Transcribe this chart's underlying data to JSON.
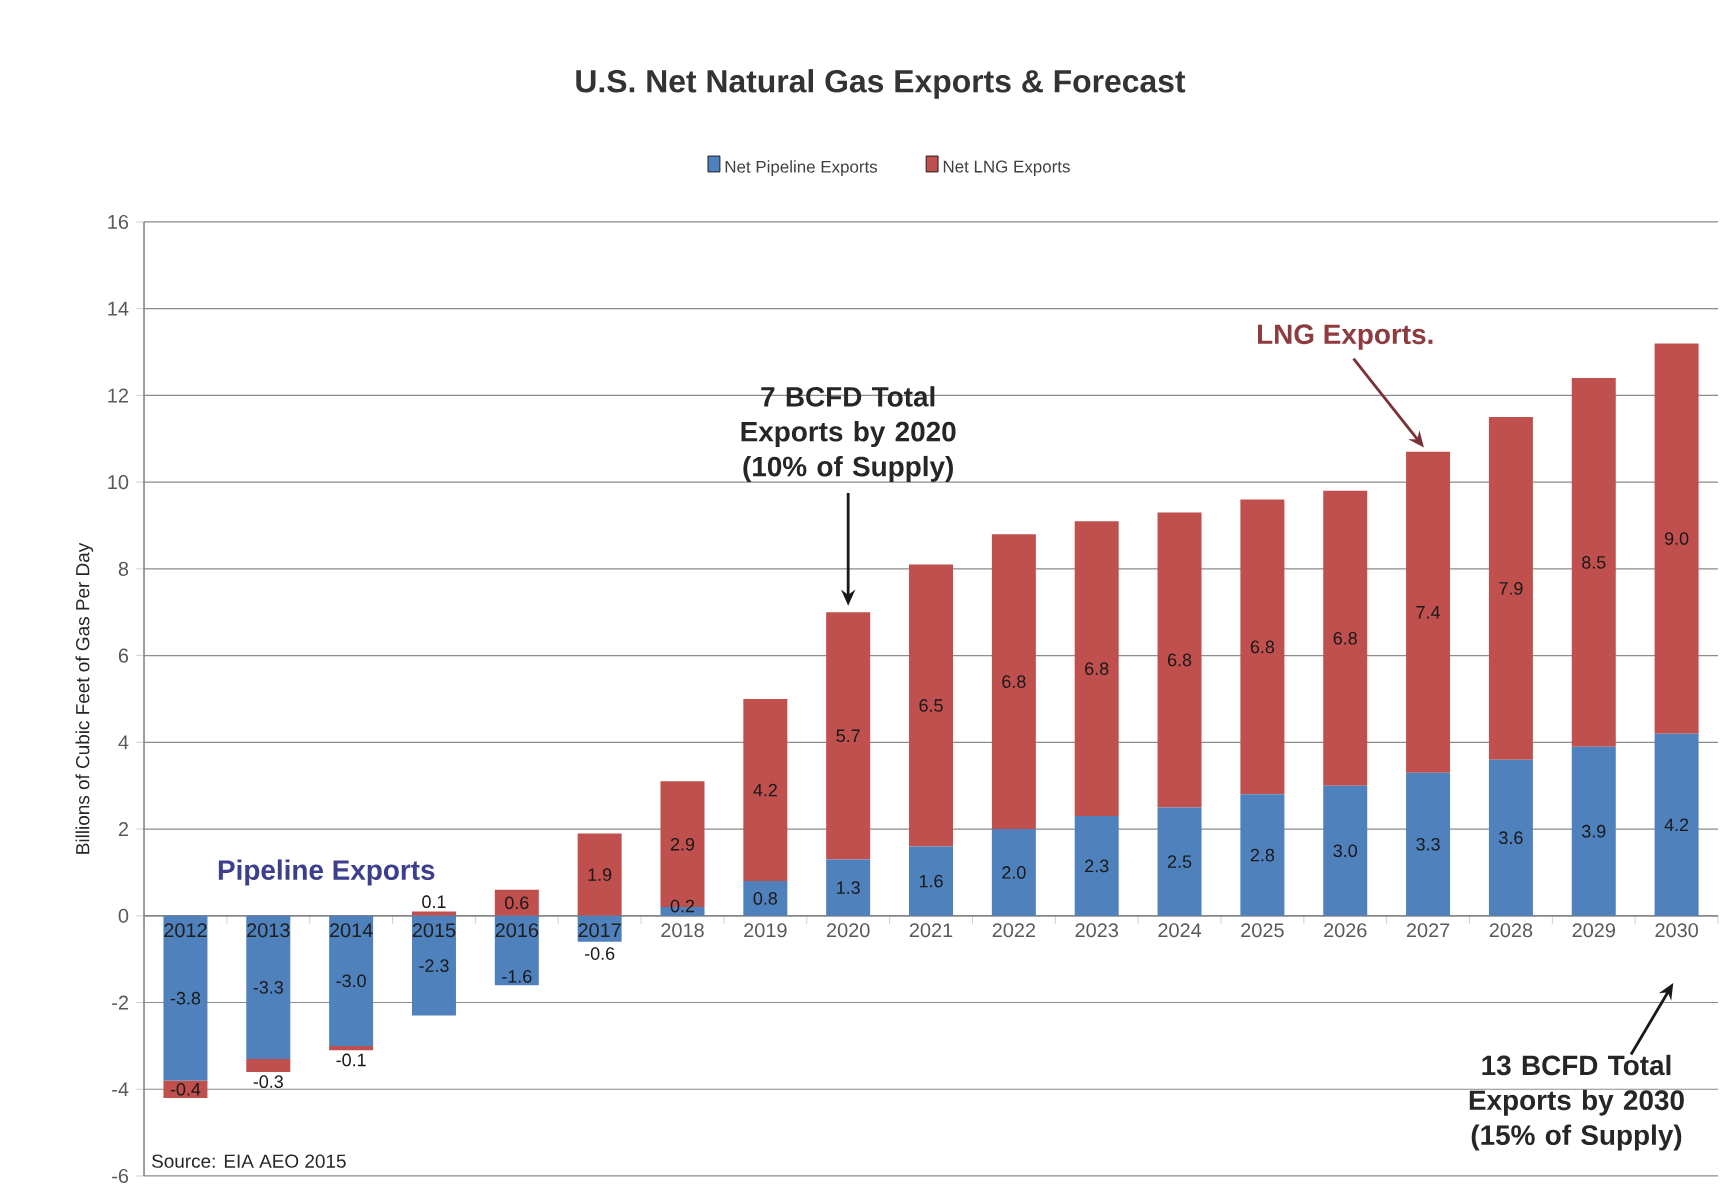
{
  "chart_data": {
    "type": "bar",
    "title": "U.S. Net Natural Gas Exports & Forecast",
    "ylabel": "Billions of Cubic Feet of Gas Per Day",
    "categories": [
      "2012",
      "2013",
      "2014",
      "2015",
      "2016",
      "2017",
      "2018",
      "2019",
      "2020",
      "2021",
      "2022",
      "2023",
      "2024",
      "2025",
      "2026",
      "2027",
      "2028",
      "2029",
      "2030"
    ],
    "series": [
      {
        "name": "Net Pipeline Exports",
        "color": "#4F81BD",
        "values": [
          -3.8,
          -3.3,
          -3.0,
          -2.3,
          -1.6,
          -0.6,
          0.2,
          0.8,
          1.3,
          1.6,
          2.0,
          2.3,
          2.5,
          2.8,
          3.0,
          3.3,
          3.6,
          3.9,
          4.2
        ],
        "value_labels": [
          "-3.8",
          "-3.3",
          "-3.0",
          "-2.3",
          "-1.6",
          "-0.6",
          "0.2",
          "0.8",
          "1.3",
          "1.6",
          "2.0",
          "2.3",
          "2.5",
          "2.8",
          "3.0",
          "3.3",
          "3.6",
          "3.9",
          "4.2"
        ]
      },
      {
        "name": "Net LNG Exports",
        "color": "#C0504D",
        "values": [
          -0.4,
          -0.3,
          -0.1,
          0.1,
          0.6,
          1.9,
          2.9,
          4.2,
          5.7,
          6.5,
          6.8,
          6.8,
          6.8,
          6.8,
          6.8,
          7.4,
          7.9,
          8.5,
          9.0
        ],
        "value_labels": [
          "-0.4",
          "-0.3",
          "-0.1",
          "0.1",
          "0.6",
          "1.9",
          "2.9",
          "4.2",
          "5.7",
          "6.5",
          "6.8",
          "6.8",
          "6.8",
          "6.8",
          "6.8",
          "7.4",
          "7.9",
          "8.5",
          "9.0"
        ]
      }
    ],
    "stacked": true,
    "ylim": [
      -6,
      16
    ],
    "yticks": [
      -6,
      -4,
      -2,
      0,
      2,
      4,
      6,
      8,
      10,
      12,
      14,
      16
    ],
    "grid": "y",
    "legend": "top",
    "annotations": [
      "Pipeline Exports",
      {
        "text": "7 BCFD Total Exports by 2020 (10% of Supply)",
        "x": "2020",
        "y": 7.0
      },
      {
        "text": "LNG Exports.",
        "x": "2027",
        "y": 10.7
      },
      "13 BCFD Total Exports by 2030 (15% of Supply)",
      "Source: EIA AEO 2015"
    ]
  }
}
